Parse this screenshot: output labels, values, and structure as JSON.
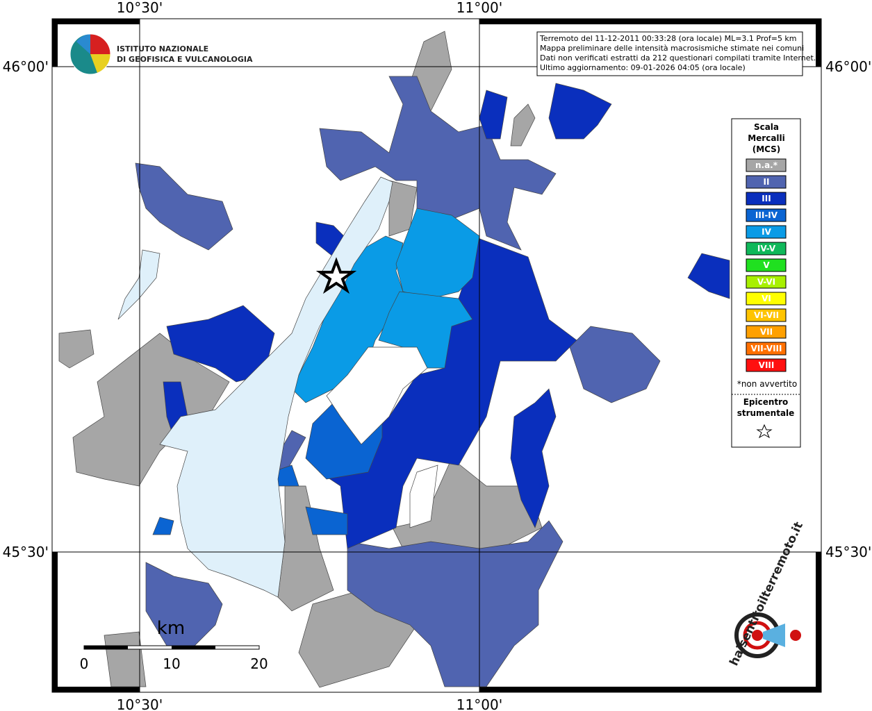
{
  "map": {
    "lon_labels": [
      "10°30'",
      "11°00'"
    ],
    "lat_labels": [
      "46°00'",
      "45°30'"
    ],
    "info": [
      "Terremoto del 11-12-2011 00:33:28 (ora locale) ML=3.1 Prof=5 km",
      "Mappa preliminare delle intensità macrosismiche stimate nei comuni",
      "Dati non verificati estratti da 212 questionari compilati tramite Internet.",
      "Ultimo aggiornamento: 09-01-2026 04:05 (ora locale)"
    ],
    "logo": [
      "ISTITUTO NAZIONALE",
      "DI GEOFISICA E VULCANOLOGIA"
    ],
    "legend": {
      "title": [
        "Scala",
        "Mercalli",
        "(MCS)"
      ],
      "items": [
        {
          "label": "n.a.*",
          "color": "#a6a6a6"
        },
        {
          "label": "II",
          "color": "#5064b0"
        },
        {
          "label": "III",
          "color": "#0a2fbd"
        },
        {
          "label": "III-IV",
          "color": "#0a64d2"
        },
        {
          "label": "IV",
          "color": "#0a9be6"
        },
        {
          "label": "IV-V",
          "color": "#10b85a"
        },
        {
          "label": "V",
          "color": "#20e020"
        },
        {
          "label": "V-VI",
          "color": "#a8f000"
        },
        {
          "label": "VI",
          "color": "#ffff00"
        },
        {
          "label": "VI-VII",
          "color": "#ffc400"
        },
        {
          "label": "VII",
          "color": "#ffa000"
        },
        {
          "label": "VII-VIII",
          "color": "#ff7000"
        },
        {
          "label": "VIII",
          "color": "#ff1010"
        }
      ],
      "note": "*non avvertito",
      "epicenter": [
        "Epicentro",
        "strumentale"
      ]
    },
    "scale": {
      "unit": "km",
      "ticks": [
        0,
        10,
        20
      ]
    },
    "badge": "haisentitoilterremoto.it"
  }
}
